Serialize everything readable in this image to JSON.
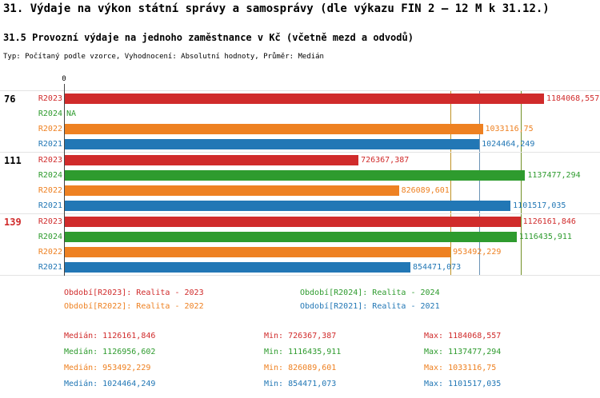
{
  "header": {
    "title": "31. Výdaje na výkon státní správy a samosprávy (dle výkazu FIN 2 – 12 M k 31.12.)",
    "subtitle": "31.5 Provozní výdaje na jednoho zaměstnance v Kč (včetně mezd a odvodů)",
    "meta": "Typ: Počítaný podle vzorce, Vyhodnocení: Absolutní hodnoty, Průměr: Medián"
  },
  "colors": {
    "r2023": "#d02b2b",
    "r2024": "#2e9b2e",
    "r2022": "#ee8122",
    "r2021": "#2277b5"
  },
  "chart_data": {
    "type": "bar",
    "orientation": "horizontal",
    "axis_origin_label": "0",
    "axis_max": 1184068.557,
    "series_labels": [
      "R2023",
      "R2024",
      "R2022",
      "R2021"
    ],
    "groups": [
      {
        "label": "76",
        "label_color": "#000000",
        "bars": [
          {
            "series": "R2023",
            "value": 1184068.557,
            "display": "1184068,557",
            "color": "#d02b2b"
          },
          {
            "series": "R2024",
            "value": null,
            "display": "NA",
            "color": "#2e9b2e"
          },
          {
            "series": "R2022",
            "value": 1033116.75,
            "display": "1033116,75",
            "color": "#ee8122"
          },
          {
            "series": "R2021",
            "value": 1024464.249,
            "display": "1024464,249",
            "color": "#2277b5"
          }
        ]
      },
      {
        "label": "111",
        "label_color": "#000000",
        "bars": [
          {
            "series": "R2023",
            "value": 726367.387,
            "display": "726367,387",
            "color": "#d02b2b"
          },
          {
            "series": "R2024",
            "value": 1137477.294,
            "display": "1137477,294",
            "color": "#2e9b2e"
          },
          {
            "series": "R2022",
            "value": 826089.601,
            "display": "826089,601",
            "color": "#ee8122"
          },
          {
            "series": "R2021",
            "value": 1101517.035,
            "display": "1101517,035",
            "color": "#2277b5"
          }
        ]
      },
      {
        "label": "139",
        "label_color": "#d02b2b",
        "bars": [
          {
            "series": "R2023",
            "value": 1126161.846,
            "display": "1126161,846",
            "color": "#d02b2b"
          },
          {
            "series": "R2024",
            "value": 1116435.911,
            "display": "1116435,911",
            "color": "#2e9b2e"
          },
          {
            "series": "R2022",
            "value": 953492.229,
            "display": "953492,229",
            "color": "#ee8122"
          },
          {
            "series": "R2021",
            "value": 854471.073,
            "display": "854471,073",
            "color": "#2277b5"
          }
        ]
      }
    ],
    "median_lines": [
      {
        "series": "R2022",
        "value": 953492.229,
        "color": "#b8860b"
      },
      {
        "series": "R2021",
        "value": 1024464.249,
        "color": "#5a87ad"
      },
      {
        "series": "R2023",
        "value": 1126161.846,
        "color": "#9a9a30"
      },
      {
        "series": "R2024",
        "value": 1126956.602,
        "color": "#6b8e23"
      }
    ],
    "legend": [
      {
        "label": "Období[R2023]: Realita - 2023",
        "color": "#d02b2b"
      },
      {
        "label": "Období[R2024]: Realita - 2024",
        "color": "#2e9b2e"
      },
      {
        "label": "Období[R2022]: Realita - 2022",
        "color": "#ee8122"
      },
      {
        "label": "Období[R2021]: Realita - 2021",
        "color": "#2277b5"
      }
    ],
    "stats": [
      {
        "median": "Medián: 1126161,846",
        "min": "Min: 726367,387",
        "max": "Max: 1184068,557",
        "color": "#d02b2b"
      },
      {
        "median": "Medián: 1126956,602",
        "min": "Min: 1116435,911",
        "max": "Max: 1137477,294",
        "color": "#2e9b2e"
      },
      {
        "median": "Medián: 953492,229",
        "min": "Min: 826089,601",
        "max": "Max: 1033116,75",
        "color": "#ee8122"
      },
      {
        "median": "Medián: 1024464,249",
        "min": "Min: 854471,073",
        "max": "Max: 1101517,035",
        "color": "#2277b5"
      }
    ]
  }
}
